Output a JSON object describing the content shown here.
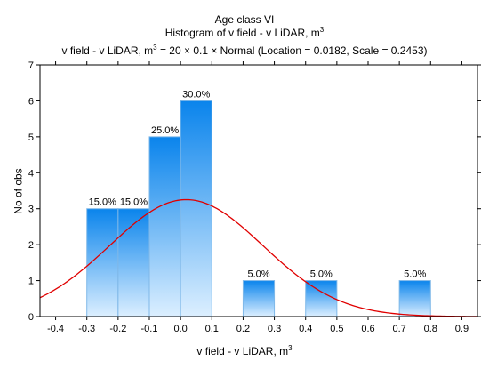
{
  "chart_data": {
    "type": "bar",
    "title_lines": [
      "Age class VI",
      "Histogram of v field - v LiDAR, m",
      "v field - v LiDAR, m",
      " = 20 × 0.1 × Normal (Location = 0.0182, Scale = 0.2453)"
    ],
    "title_superscript": "3",
    "xlabel": "v field - v LiDAR, m",
    "xlabel_superscript": "3",
    "ylabel": "No of obs",
    "xlim": [
      -0.45,
      0.95
    ],
    "ylim": [
      0,
      7
    ],
    "xticks": [
      -0.4,
      -0.3,
      -0.2,
      -0.1,
      0.0,
      0.1,
      0.2,
      0.3,
      0.4,
      0.5,
      0.6,
      0.7,
      0.8,
      0.9
    ],
    "yticks": [
      0,
      1,
      2,
      3,
      4,
      5,
      6,
      7
    ],
    "bins": [
      {
        "from": -0.3,
        "to": -0.2,
        "count": 3,
        "label": "15.0%"
      },
      {
        "from": -0.2,
        "to": -0.1,
        "count": 3,
        "label": "15.0%"
      },
      {
        "from": -0.1,
        "to": 0.0,
        "count": 5,
        "label": "25.0%"
      },
      {
        "from": 0.0,
        "to": 0.1,
        "count": 6,
        "label": "30.0%"
      },
      {
        "from": 0.2,
        "to": 0.3,
        "count": 1,
        "label": "5.0%"
      },
      {
        "from": 0.4,
        "to": 0.5,
        "count": 1,
        "label": "5.0%"
      },
      {
        "from": 0.7,
        "to": 0.8,
        "count": 1,
        "label": "5.0%"
      }
    ],
    "fit_curve": {
      "distribution": "normal",
      "n": 20,
      "bin_width": 0.1,
      "location": 0.0182,
      "scale": 0.2453,
      "color": "#e00000"
    },
    "bar_color_top": "#0a84ec",
    "bar_color_bottom": "#dcefff",
    "bar_edge_color": "#7fb8e8",
    "grid": false
  }
}
